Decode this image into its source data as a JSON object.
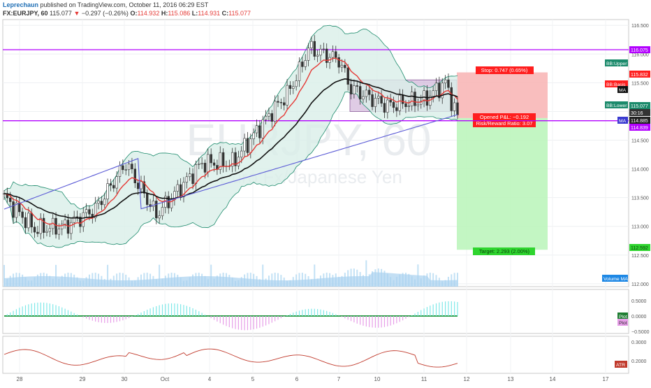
{
  "header": {
    "author": "Leprechaun",
    "published": "published on TradingView.com, October 11, 2016 06:29 EST",
    "symbol": "FX:EURJPY, 60",
    "change": "−0.297 (−0.26%)",
    "open_label": "O:",
    "open": "114.932",
    "high_label": "H:",
    "high": "115.086",
    "low_label": "L:",
    "low": "114.931",
    "close_label": "C:",
    "close": "115.077",
    "last": "115.077"
  },
  "watermark": {
    "symbol": "EURJPY, 60",
    "description": "Euro Fx/Japanese Yen"
  },
  "colors": {
    "up": "#26a69a",
    "down": "#ef5350",
    "candle": "#333333",
    "bb_fill": "#d9efe9",
    "bb_line": "#1b8a6b",
    "basis": "#e53935",
    "ma": "#111111",
    "ma_long": "#5b5bd6",
    "purple": "#b300ff",
    "stop_fill": "#f8b3b3",
    "target_fill": "#b8f5b8",
    "volume": "#b3d9f2"
  },
  "chart_data": [
    {
      "type": "candlestick",
      "title": "",
      "ylim": [
        111.95,
        116.6
      ],
      "y_ticks": [
        "116.500",
        "116.000",
        "115.500",
        "115.000",
        "114.500",
        "114.000",
        "113.500",
        "113.000",
        "112.500",
        "112.000"
      ],
      "x_ticks": [
        "28",
        "29",
        "30",
        "Oct",
        "4",
        "5",
        "6",
        "7",
        "10",
        "11",
        "12",
        "13",
        "14",
        "17"
      ],
      "indicators": {
        "bb_upper_label": "BB:Upper",
        "bb_basis_label": "BB:Basis",
        "bb_lower_label": "BB:Lower",
        "ma_label": "MA",
        "volume_ma_label": "Volume MA"
      },
      "horizontal_lines": [
        116.075,
        114.839
      ],
      "tag_values": {
        "resistance": "116.075",
        "bb_upper": "115.832",
        "bb_lower": "115.077",
        "candle_time": "30:16",
        "ma": "114.885",
        "support": "114.839",
        "target": "112.592"
      },
      "position": {
        "stop_text": "Stop: 0.747 (0.65%)",
        "open_text": "Opened P&L: −0.192",
        "ratio_text": "Risk/Reward Ratio: 3.07",
        "target_text": "Target: 2.293 (2.00%)",
        "entry": 114.885,
        "stop": 115.632,
        "target": 112.592
      },
      "range_box": {
        "top": 115.55,
        "bottom": 115.0
      }
    },
    {
      "type": "histogram",
      "title": "",
      "y_ticks": [
        "0.5000",
        "0.0000",
        "−0.5000"
      ],
      "labels": [
        "Plot",
        "Plot"
      ]
    },
    {
      "type": "line",
      "title": "",
      "y_ticks": [
        "0.3000",
        "0.2000"
      ],
      "label": "ATR"
    }
  ]
}
